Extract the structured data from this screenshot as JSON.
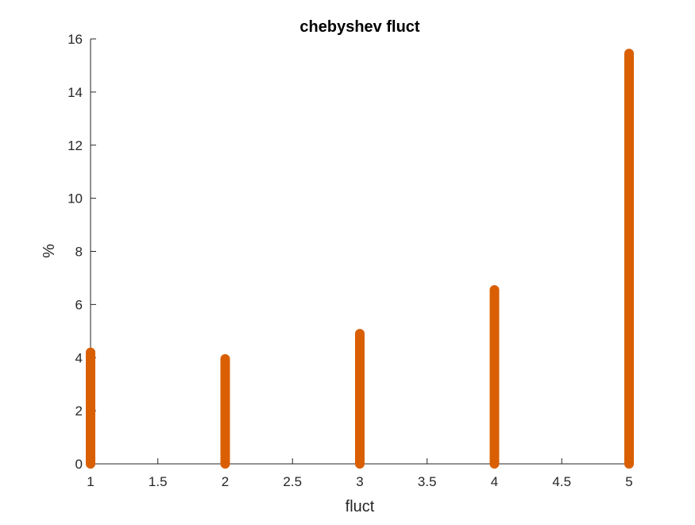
{
  "chart_data": {
    "type": "bar",
    "title": "chebyshev fluct",
    "xlabel": "fluct",
    "ylabel": "%",
    "x": [
      1,
      2,
      3,
      4,
      5
    ],
    "values": [
      4.2,
      3.95,
      4.9,
      6.55,
      15.45
    ],
    "xlim": [
      1,
      5
    ],
    "ylim": [
      0,
      16
    ],
    "xticks": [
      "1",
      "1.5",
      "2",
      "2.5",
      "3",
      "3.5",
      "4",
      "4.5",
      "5"
    ],
    "yticks": [
      "0",
      "2",
      "4",
      "6",
      "8",
      "10",
      "12",
      "14",
      "16"
    ],
    "grid": false,
    "bar_color": "#D95F02",
    "axis_color": "#262626"
  }
}
